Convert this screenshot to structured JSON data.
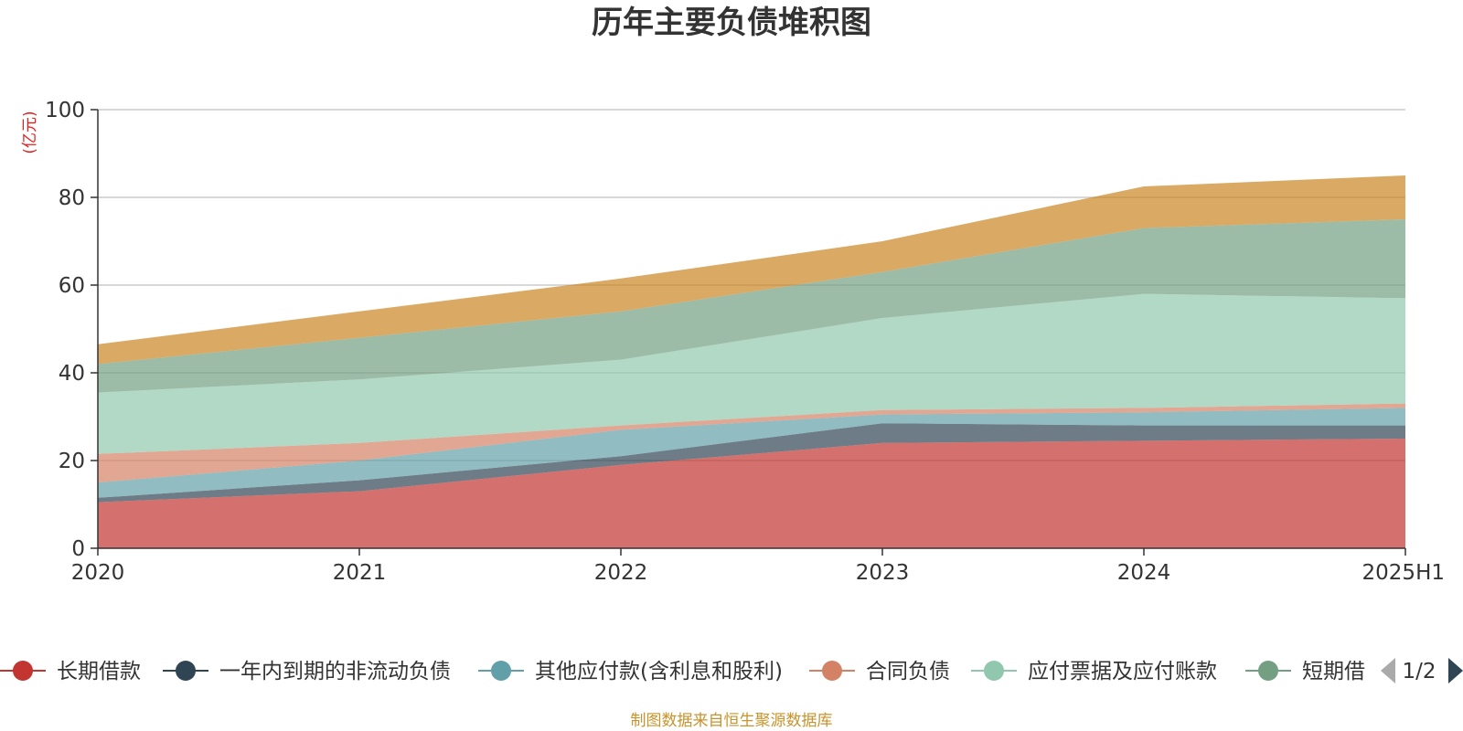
{
  "chart_data": {
    "type": "area",
    "stacked": true,
    "title": "历年主要负债堆积图",
    "unit_label": "(亿元)",
    "x": [
      "2020",
      "2021",
      "2022",
      "2023",
      "2024",
      "2025H1"
    ],
    "ylim": [
      0,
      100
    ],
    "yticks": [
      0,
      20,
      40,
      60,
      80,
      100
    ],
    "grid": true,
    "legend_position": "bottom",
    "series": [
      {
        "name": "长期借款",
        "color": "#c23531",
        "values": [
          10.5,
          13,
          19,
          24,
          24.5,
          25
        ]
      },
      {
        "name": "一年内到期的非流动负债",
        "color": "#2f4554",
        "values": [
          1.0,
          2.5,
          2.0,
          4.5,
          3.5,
          3.0
        ]
      },
      {
        "name": "其他应付款(含利息和股利)",
        "color": "#61a0a8",
        "values": [
          3.5,
          4.5,
          6.0,
          2.0,
          3.0,
          4.0
        ]
      },
      {
        "name": "合同负债",
        "color": "#d48265",
        "values": [
          6.5,
          4.0,
          1.0,
          1.0,
          1.0,
          1.0
        ]
      },
      {
        "name": "应付票据及应付账款",
        "color": "#91c7ae",
        "values": [
          14.0,
          14.5,
          15.0,
          21.0,
          26.0,
          24.0
        ]
      },
      {
        "name": "短期借款",
        "color": "#749f83",
        "values": [
          6.5,
          9.5,
          11.0,
          10.5,
          15.0,
          18.0
        ]
      },
      {
        "name": "",
        "color": "#ca8622",
        "values": [
          4.5,
          6.0,
          7.5,
          7.0,
          9.5,
          10.0
        ]
      }
    ]
  },
  "legend": {
    "items": [
      "长期借款",
      "一年内到期的非流动负债",
      "其他应付款(含利息和股利)",
      "合同负债",
      "应付票据及应付账款",
      "短期借"
    ],
    "page": "1/2"
  },
  "footer": {
    "source": "制图数据来自恒生聚源数据库"
  }
}
